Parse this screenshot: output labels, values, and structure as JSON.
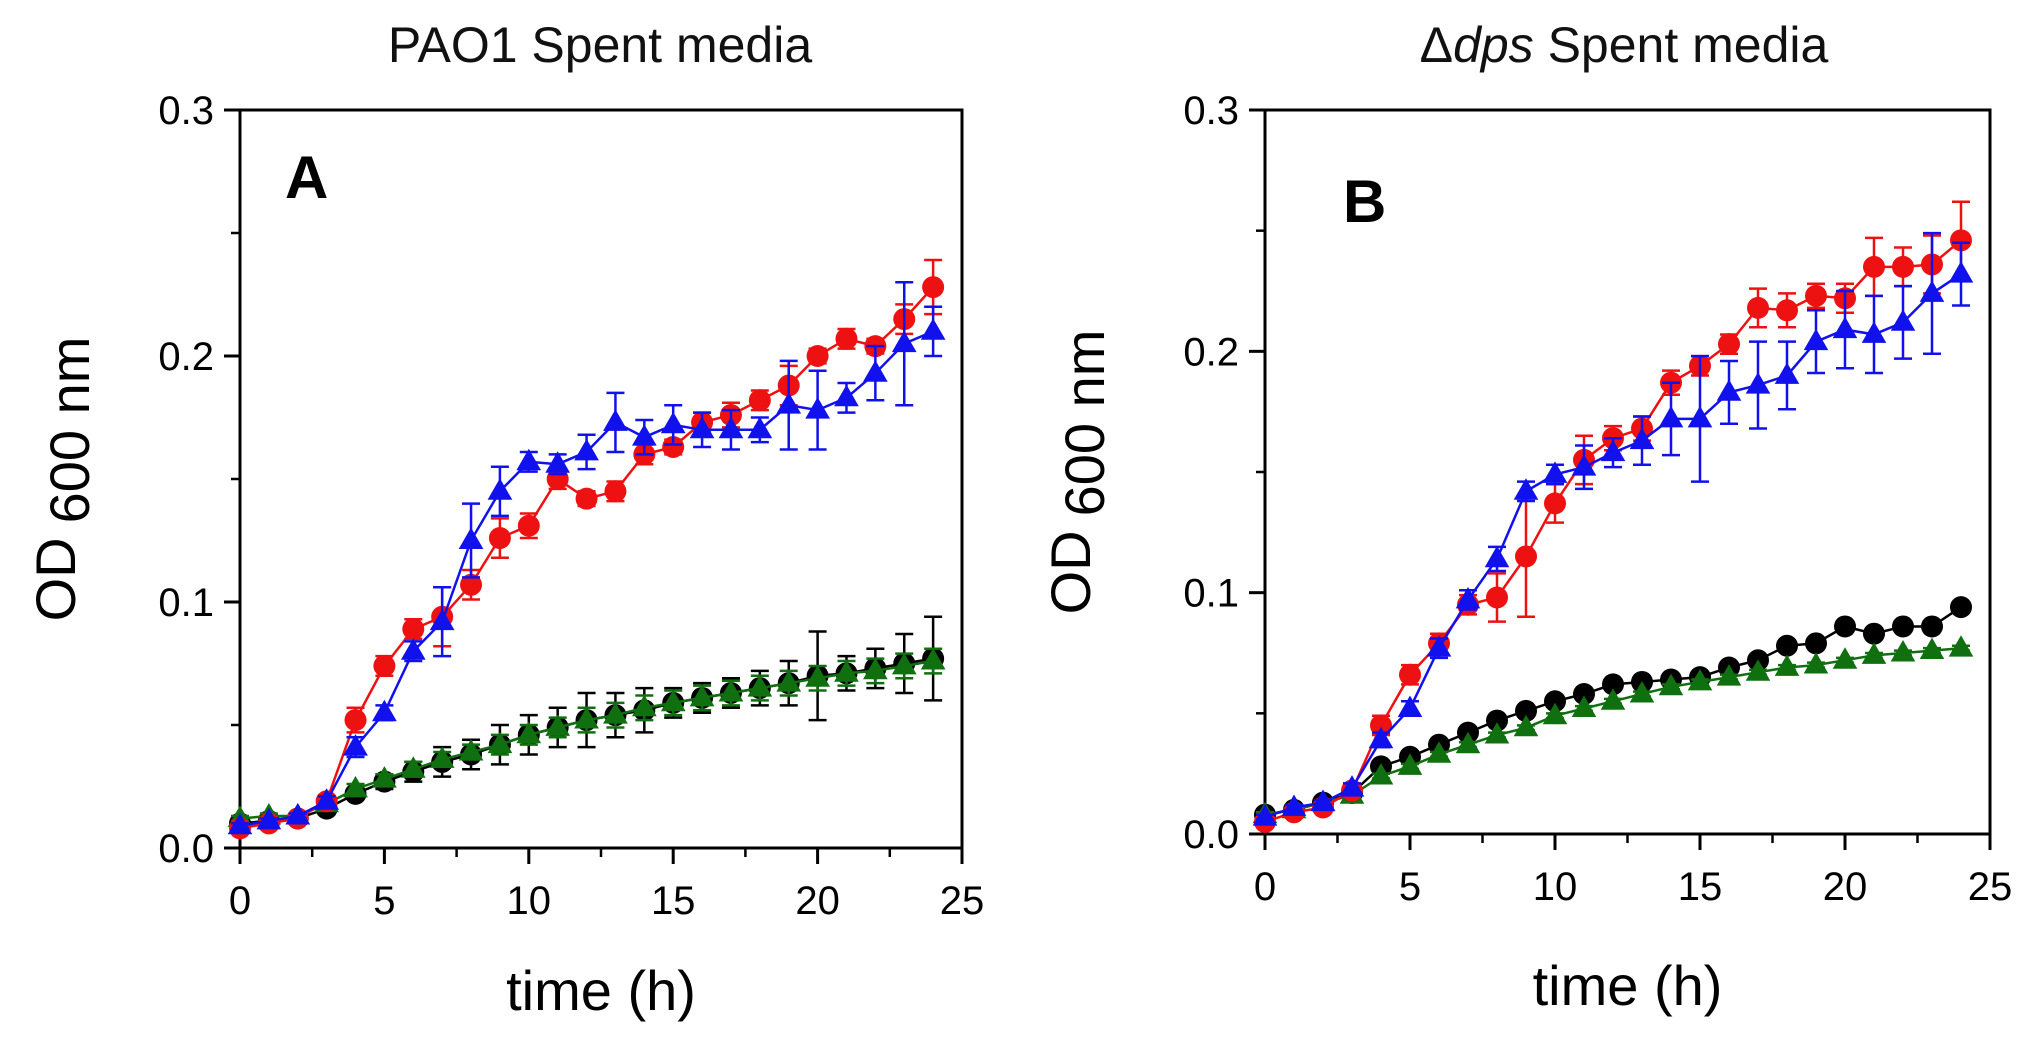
{
  "chart_data": [
    {
      "type": "line",
      "panel_label": "A",
      "title": "PAO1 Spent media",
      "title_parts": [
        {
          "text": "PAO1 Spent media",
          "italic": false
        }
      ],
      "ylabel": "OD",
      "ylabel_sub": "600 nm",
      "xlabel": "time (h)",
      "xlim": [
        0,
        25
      ],
      "ylim": [
        0,
        0.3
      ],
      "xticks": [
        "0",
        "5",
        "10",
        "15",
        "20",
        "25"
      ],
      "yticks": [
        "0.0",
        "0.1",
        "0.2",
        "0.3"
      ],
      "grid": false,
      "x": [
        0,
        1,
        2,
        3,
        4,
        5,
        6,
        7,
        8,
        9,
        10,
        11,
        12,
        13,
        14,
        15,
        16,
        17,
        18,
        19,
        20,
        21,
        22,
        23,
        24
      ],
      "series": [
        {
          "name": "black circles",
          "color": "#000000",
          "marker": "circle",
          "values": [
            0.01,
            0.011,
            0.012,
            0.016,
            0.022,
            0.027,
            0.031,
            0.035,
            0.038,
            0.042,
            0.046,
            0.049,
            0.052,
            0.054,
            0.056,
            0.059,
            0.061,
            0.063,
            0.065,
            0.067,
            0.07,
            0.071,
            0.073,
            0.075,
            0.077
          ],
          "errors": [
            0.001,
            0.001,
            0.001,
            0.002,
            0.002,
            0.003,
            0.004,
            0.006,
            0.006,
            0.008,
            0.008,
            0.008,
            0.011,
            0.009,
            0.009,
            0.006,
            0.006,
            0.006,
            0.007,
            0.009,
            0.018,
            0.007,
            0.008,
            0.012,
            0.017
          ]
        },
        {
          "name": "green triangles",
          "color": "#107010",
          "marker": "triangle",
          "values": [
            0.012,
            0.013,
            0.013,
            0.018,
            0.024,
            0.028,
            0.032,
            0.036,
            0.039,
            0.042,
            0.046,
            0.049,
            0.052,
            0.054,
            0.057,
            0.059,
            0.061,
            0.063,
            0.065,
            0.067,
            0.069,
            0.071,
            0.072,
            0.074,
            0.076
          ],
          "errors": [
            0.001,
            0.001,
            0.001,
            0.002,
            0.002,
            0.002,
            0.003,
            0.003,
            0.003,
            0.004,
            0.004,
            0.004,
            0.005,
            0.005,
            0.005,
            0.005,
            0.005,
            0.005,
            0.005,
            0.005,
            0.005,
            0.005,
            0.005,
            0.005,
            0.005
          ]
        },
        {
          "name": "red circles",
          "color": "#ee1111",
          "marker": "circle",
          "values": [
            0.008,
            0.01,
            0.012,
            0.019,
            0.052,
            0.074,
            0.089,
            0.094,
            0.107,
            0.126,
            0.131,
            0.15,
            0.142,
            0.145,
            0.16,
            0.163,
            0.173,
            0.176,
            0.182,
            0.188,
            0.2,
            0.207,
            0.204,
            0.215,
            0.228
          ],
          "errors": [
            0.001,
            0.001,
            0.001,
            0.002,
            0.005,
            0.004,
            0.004,
            0.012,
            0.006,
            0.008,
            0.005,
            0.004,
            0.003,
            0.004,
            0.004,
            0.003,
            0.004,
            0.005,
            0.004,
            0.008,
            0.003,
            0.004,
            0.003,
            0.006,
            0.011
          ]
        },
        {
          "name": "blue triangles",
          "color": "#1111ee",
          "marker": "triangle",
          "values": [
            0.009,
            0.011,
            0.013,
            0.019,
            0.041,
            0.055,
            0.08,
            0.092,
            0.125,
            0.145,
            0.157,
            0.156,
            0.161,
            0.173,
            0.167,
            0.172,
            0.17,
            0.17,
            0.17,
            0.18,
            0.178,
            0.183,
            0.193,
            0.205,
            0.21
          ],
          "errors": [
            0.001,
            0.001,
            0.001,
            0.002,
            0.004,
            0.003,
            0.004,
            0.014,
            0.015,
            0.01,
            0.004,
            0.004,
            0.007,
            0.012,
            0.007,
            0.008,
            0.007,
            0.008,
            0.005,
            0.018,
            0.016,
            0.006,
            0.011,
            0.025,
            0.01
          ]
        }
      ]
    },
    {
      "type": "line",
      "panel_label": "B",
      "title": "Δdps Spent media",
      "title_parts": [
        {
          "text": "Δ",
          "italic": false
        },
        {
          "text": "dps",
          "italic": true
        },
        {
          "text": " Spent media",
          "italic": false
        }
      ],
      "ylabel": "OD",
      "ylabel_sub": "600 nm",
      "xlabel": "time (h)",
      "xlim": [
        0,
        25
      ],
      "ylim": [
        0,
        0.3
      ],
      "xticks": [
        "0",
        "5",
        "10",
        "15",
        "20",
        "25"
      ],
      "yticks": [
        "0.0",
        "0.1",
        "0.2",
        "0.3"
      ],
      "grid": false,
      "x": [
        0,
        1,
        2,
        3,
        4,
        5,
        6,
        7,
        8,
        9,
        10,
        11,
        12,
        13,
        14,
        15,
        16,
        17,
        18,
        19,
        20,
        21,
        22,
        23,
        24
      ],
      "series": [
        {
          "name": "black circles",
          "color": "#000000",
          "marker": "circle",
          "values": [
            0.008,
            0.01,
            0.013,
            0.017,
            0.028,
            0.032,
            0.037,
            0.042,
            0.047,
            0.051,
            0.055,
            0.058,
            0.062,
            0.063,
            0.064,
            0.065,
            0.069,
            0.072,
            0.078,
            0.079,
            0.086,
            0.083,
            0.086,
            0.086,
            0.094
          ],
          "errors": [
            0.001,
            0.001,
            0.001,
            0.001,
            0.001,
            0.001,
            0.001,
            0.001,
            0.001,
            0.001,
            0.001,
            0.001,
            0.001,
            0.001,
            0.001,
            0.001,
            0.001,
            0.001,
            0.001,
            0.001,
            0.001,
            0.001,
            0.001,
            0.001,
            0.001
          ]
        },
        {
          "name": "green triangles",
          "color": "#107010",
          "marker": "triangle",
          "values": [
            0.008,
            0.01,
            0.013,
            0.016,
            0.024,
            0.028,
            0.033,
            0.037,
            0.041,
            0.044,
            0.049,
            0.052,
            0.055,
            0.058,
            0.061,
            0.063,
            0.065,
            0.067,
            0.069,
            0.07,
            0.072,
            0.074,
            0.075,
            0.076,
            0.077
          ],
          "errors": [
            0.001,
            0.001,
            0.001,
            0.001,
            0.001,
            0.001,
            0.001,
            0.001,
            0.001,
            0.001,
            0.001,
            0.001,
            0.001,
            0.001,
            0.001,
            0.001,
            0.001,
            0.001,
            0.001,
            0.001,
            0.001,
            0.001,
            0.001,
            0.001,
            0.001
          ]
        },
        {
          "name": "red circles",
          "color": "#ee1111",
          "marker": "circle",
          "values": [
            0.005,
            0.009,
            0.011,
            0.018,
            0.045,
            0.066,
            0.079,
            0.095,
            0.098,
            0.115,
            0.137,
            0.155,
            0.164,
            0.168,
            0.187,
            0.194,
            0.203,
            0.218,
            0.217,
            0.223,
            0.222,
            0.235,
            0.235,
            0.236,
            0.246
          ],
          "errors": [
            0.001,
            0.001,
            0.001,
            0.002,
            0.004,
            0.004,
            0.004,
            0.004,
            0.01,
            0.025,
            0.008,
            0.01,
            0.005,
            0.005,
            0.005,
            0.004,
            0.004,
            0.008,
            0.007,
            0.005,
            0.006,
            0.012,
            0.008,
            0.012,
            0.016
          ]
        },
        {
          "name": "blue triangles",
          "color": "#1111ee",
          "marker": "triangle",
          "values": [
            0.007,
            0.011,
            0.013,
            0.019,
            0.039,
            0.052,
            0.077,
            0.097,
            0.114,
            0.142,
            0.149,
            0.152,
            0.158,
            0.163,
            0.172,
            0.172,
            0.183,
            0.186,
            0.19,
            0.204,
            0.209,
            0.207,
            0.212,
            0.224,
            0.232
          ],
          "errors": [
            0.001,
            0.001,
            0.001,
            0.002,
            0.003,
            0.003,
            0.004,
            0.004,
            0.005,
            0.004,
            0.004,
            0.009,
            0.006,
            0.01,
            0.015,
            0.026,
            0.013,
            0.018,
            0.014,
            0.013,
            0.016,
            0.016,
            0.015,
            0.025,
            0.013
          ]
        }
      ]
    }
  ]
}
